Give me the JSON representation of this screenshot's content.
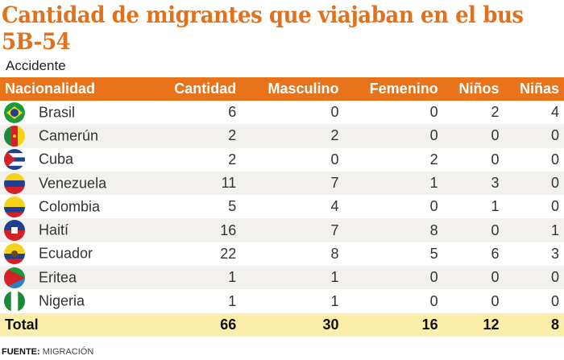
{
  "title": "Cantidad de migrantes que viajaban en el bus 5B-54",
  "subtitle": "Accidente",
  "source_label": "FUENTE:",
  "source": "MIGRACIÓN",
  "colors": {
    "accent": "#e8731a",
    "title": "#e2711d",
    "total_bg": "#fbeeaa",
    "alt_row": "#f2f1ed"
  },
  "chart_data": {
    "type": "table",
    "title": "Cantidad de migrantes que viajaban en el bus 5B-54",
    "columns": [
      "Nacionalidad",
      "Cantidad",
      "Masculino",
      "Femenino",
      "Niños",
      "Niñas"
    ],
    "rows": [
      {
        "flag": "brazil-flag",
        "name": "Brasil",
        "values": [
          6,
          0,
          0,
          2,
          4
        ]
      },
      {
        "flag": "cameroon-flag",
        "name": "Camerún",
        "values": [
          2,
          2,
          0,
          0,
          0
        ]
      },
      {
        "flag": "cuba-flag",
        "name": "Cuba",
        "values": [
          2,
          0,
          2,
          0,
          0
        ]
      },
      {
        "flag": "venezuela-flag",
        "name": "Venezuela",
        "values": [
          11,
          7,
          1,
          3,
          0
        ]
      },
      {
        "flag": "colombia-flag",
        "name": "Colombia",
        "values": [
          5,
          4,
          0,
          1,
          0
        ]
      },
      {
        "flag": "haiti-flag",
        "name": "Haití",
        "values": [
          16,
          7,
          8,
          0,
          1
        ]
      },
      {
        "flag": "ecuador-flag",
        "name": "Ecuador",
        "values": [
          22,
          8,
          5,
          6,
          3
        ]
      },
      {
        "flag": "eritrea-flag",
        "name": "Eritea",
        "values": [
          1,
          1,
          0,
          0,
          0
        ]
      },
      {
        "flag": "nigeria-flag",
        "name": "Nigeria",
        "values": [
          1,
          1,
          0,
          0,
          0
        ]
      }
    ],
    "total": {
      "name": "Total",
      "values": [
        66,
        30,
        16,
        12,
        8
      ]
    }
  }
}
